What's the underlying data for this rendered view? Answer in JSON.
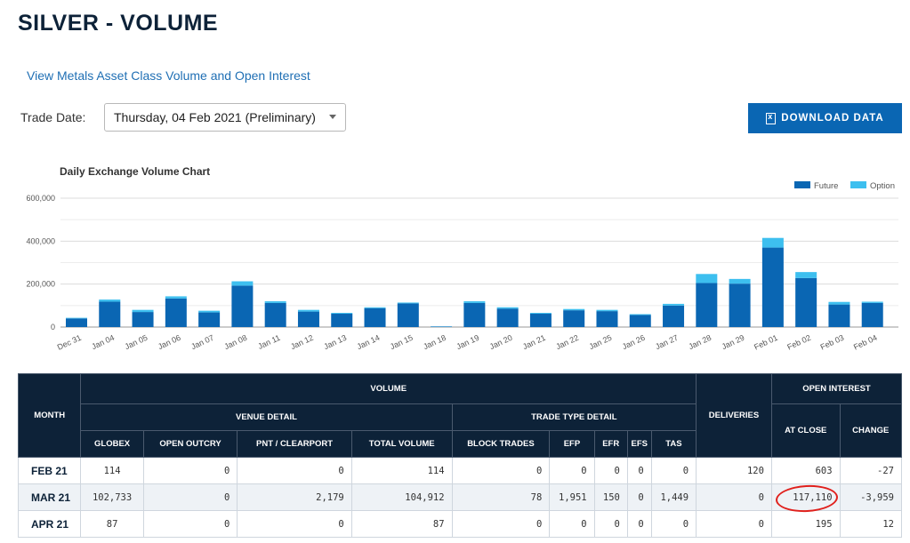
{
  "page": {
    "title": "SILVER - VOLUME",
    "link": "View Metals Asset Class Volume and Open Interest",
    "trade_date_label": "Trade Date:",
    "trade_date_value": "Thursday, 04 Feb 2021 (Preliminary)",
    "download_label": "DOWNLOAD DATA"
  },
  "chart_data": {
    "type": "bar",
    "stacked": true,
    "title": "Daily Exchange Volume Chart",
    "categories": [
      "Dec 31",
      "Jan 04",
      "Jan 05",
      "Jan 06",
      "Jan 07",
      "Jan 08",
      "Jan 11",
      "Jan 12",
      "Jan 13",
      "Jan 14",
      "Jan 15",
      "Jan 18",
      "Jan 19",
      "Jan 20",
      "Jan 21",
      "Jan 22",
      "Jan 25",
      "Jan 26",
      "Jan 27",
      "Jan 28",
      "Jan 29",
      "Feb 01",
      "Feb 02",
      "Feb 03",
      "Feb 04"
    ],
    "series": [
      {
        "name": "Future",
        "color": "#0a66b3",
        "values": [
          40000,
          118000,
          70000,
          133000,
          68000,
          193000,
          112000,
          72000,
          62000,
          88000,
          110000,
          2000,
          112000,
          86000,
          62000,
          78000,
          74000,
          56000,
          100000,
          205000,
          202000,
          370000,
          228000,
          105000,
          112000
        ]
      },
      {
        "name": "Option",
        "color": "#3dbfef",
        "values": [
          3000,
          10000,
          10000,
          10000,
          8000,
          20000,
          8000,
          8000,
          4000,
          4000,
          4000,
          1000,
          8000,
          6000,
          4000,
          6000,
          6000,
          4000,
          8000,
          42000,
          22000,
          45000,
          28000,
          12000,
          6000
        ]
      }
    ],
    "yticks": [
      "0",
      "200,000",
      "400,000",
      "600,000"
    ],
    "ylim": [
      0,
      600000
    ],
    "grid": true,
    "legend": "top-right"
  },
  "table": {
    "headers": {
      "month": "MONTH",
      "volume": "VOLUME",
      "venue_detail": "VENUE DETAIL",
      "trade_type_detail": "TRADE TYPE DETAIL",
      "deliveries": "DELIVERIES",
      "open_interest": "OPEN INTEREST",
      "globex": "GLOBEX",
      "open_outcry": "OPEN OUTCRY",
      "pnt_clearport": "PNT / CLEARPORT",
      "total_volume": "TOTAL VOLUME",
      "block_trades": "BLOCK TRADES",
      "efp": "EFP",
      "efr": "EFR",
      "efs": "EFS",
      "tas": "TAS",
      "at_close": "AT CLOSE",
      "change": "CHANGE"
    },
    "rows": [
      {
        "month": "FEB 21",
        "globex": "114",
        "open_outcry": "0",
        "pnt": "0",
        "total": "114",
        "block": "0",
        "efp": "0",
        "efr": "0",
        "efs": "0",
        "tas": "0",
        "deliveries": "120",
        "at_close": "603",
        "change": "-27"
      },
      {
        "month": "MAR 21",
        "globex": "102,733",
        "open_outcry": "0",
        "pnt": "2,179",
        "total": "104,912",
        "block": "78",
        "efp": "1,951",
        "efr": "150",
        "efs": "0",
        "tas": "1,449",
        "deliveries": "0",
        "at_close": "117,110",
        "change": "-3,959"
      },
      {
        "month": "APR 21",
        "globex": "87",
        "open_outcry": "0",
        "pnt": "0",
        "total": "87",
        "block": "0",
        "efp": "0",
        "efr": "0",
        "efs": "0",
        "tas": "0",
        "deliveries": "0",
        "at_close": "195",
        "change": "12"
      }
    ]
  }
}
